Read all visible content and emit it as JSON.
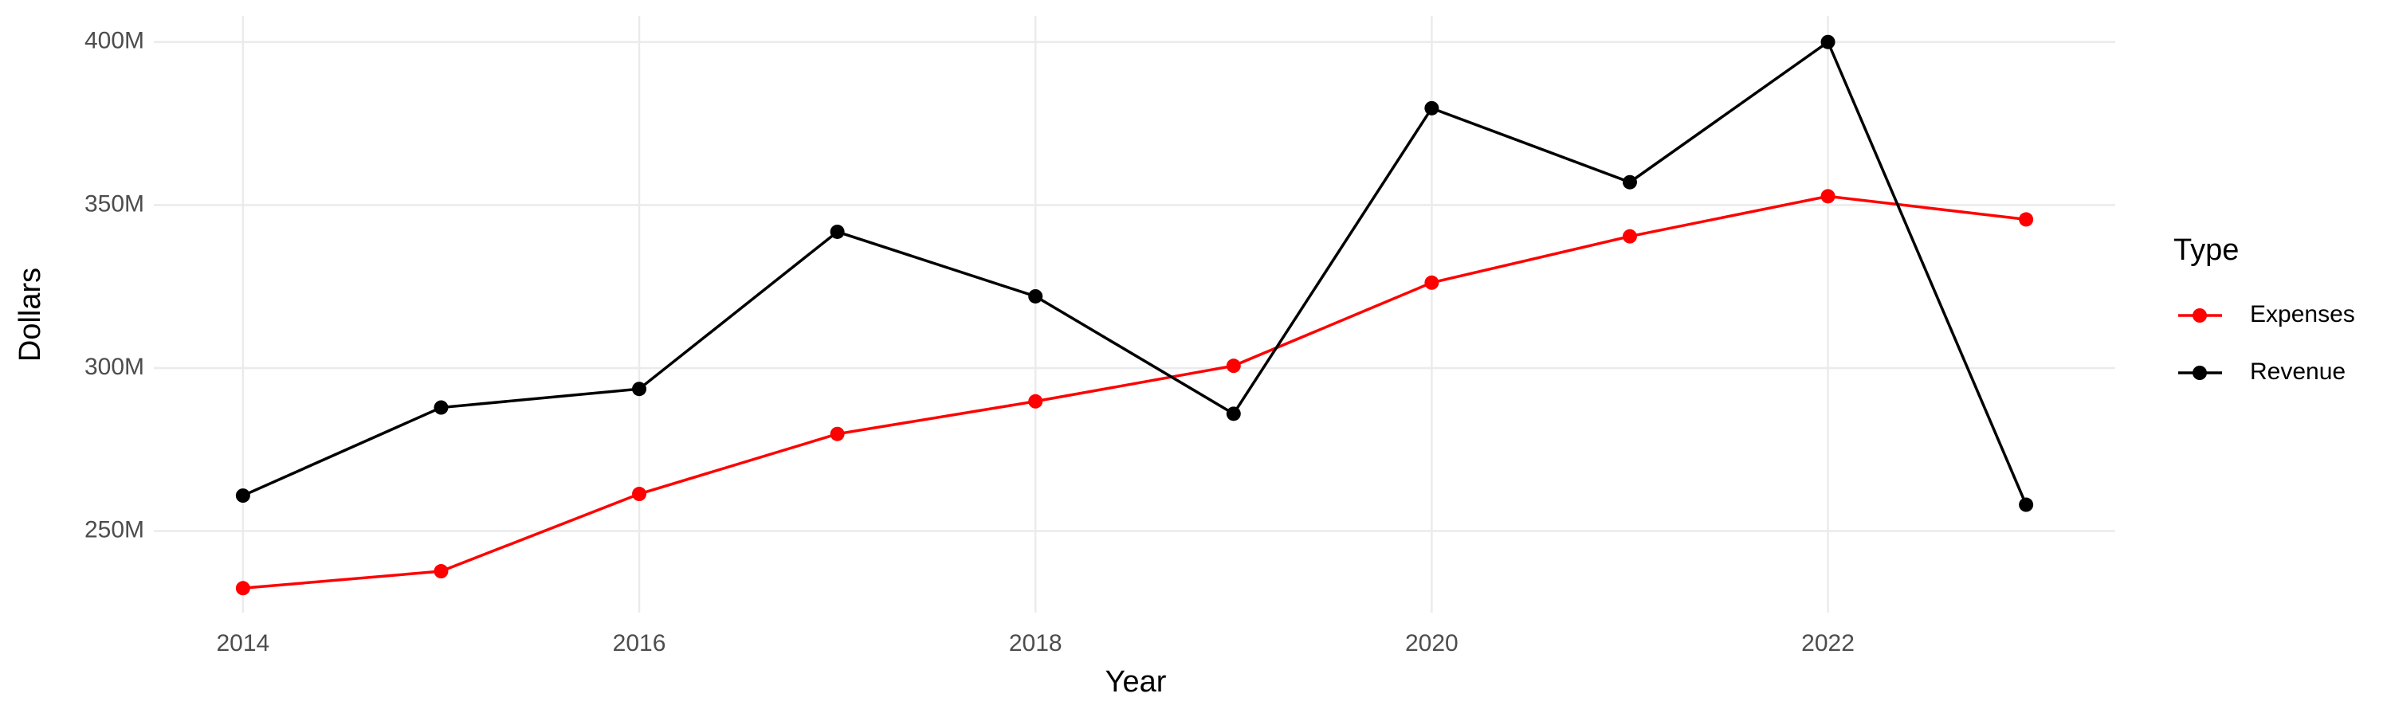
{
  "chart_data": {
    "type": "line",
    "x_label": "Year",
    "y_label": "Dollars",
    "legend_title": "Type",
    "x": [
      2014,
      2015,
      2016,
      2017,
      2018,
      2019,
      2020,
      2021,
      2022,
      2023
    ],
    "series": [
      {
        "name": "Expenses",
        "color": "#ff0000",
        "values": [
          232500000,
          237700000,
          261400000,
          279800000,
          289800000,
          300700000,
          326200000,
          340400000,
          352700000,
          345600000
        ]
      },
      {
        "name": "Revenue",
        "color": "#000000",
        "values": [
          260900000,
          287900000,
          293600000,
          341800000,
          322000000,
          286000000,
          379700000,
          357000000,
          400000000,
          258100000
        ]
      }
    ],
    "xlim": [
      2013.55,
      2023.45
    ],
    "xticks": [
      2014,
      2016,
      2018,
      2020,
      2022
    ],
    "ylim": [
      225000000,
      408000000
    ],
    "yticks": [
      {
        "value": 250000000,
        "label": "250M"
      },
      {
        "value": 300000000,
        "label": "300M"
      },
      {
        "value": 350000000,
        "label": "350M"
      },
      {
        "value": 400000000,
        "label": "400M"
      }
    ],
    "grid": true,
    "legend_position": "right"
  }
}
